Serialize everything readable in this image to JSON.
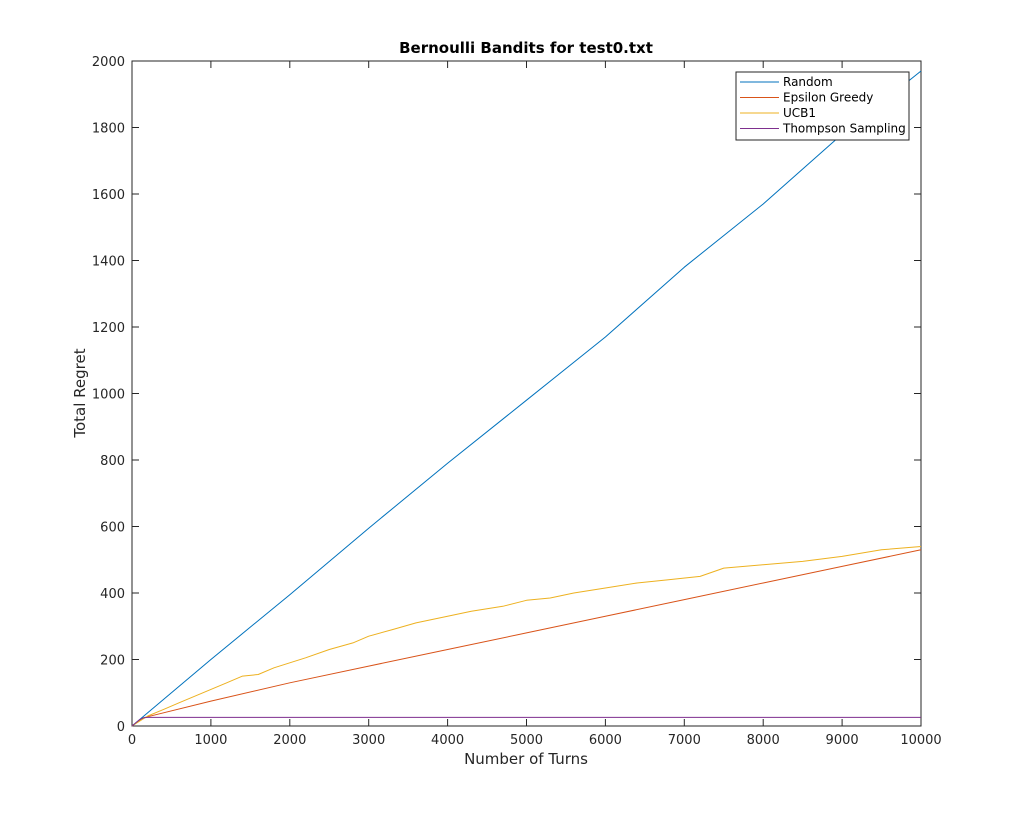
{
  "chart_data": {
    "type": "line",
    "title": "Bernoulli Bandits for test0.txt",
    "xlabel": "Number of Turns",
    "ylabel": "Total Regret",
    "xlim": [
      0,
      10000
    ],
    "ylim": [
      0,
      2000
    ],
    "xticks": [
      0,
      1000,
      2000,
      3000,
      4000,
      5000,
      6000,
      7000,
      8000,
      9000,
      10000
    ],
    "yticks": [
      0,
      200,
      400,
      600,
      800,
      1000,
      1200,
      1400,
      1600,
      1800,
      2000
    ],
    "grid": false,
    "legend_position": "top-right",
    "series": [
      {
        "name": "Random",
        "color": "#0072BD",
        "x": [
          0,
          1000,
          2000,
          3000,
          4000,
          5000,
          6000,
          7000,
          8000,
          9000,
          10000
        ],
        "y": [
          0,
          200,
          395,
          595,
          790,
          980,
          1170,
          1380,
          1570,
          1780,
          1970
        ]
      },
      {
        "name": "Epsilon Greedy",
        "color": "#D95319",
        "x": [
          0,
          100,
          150,
          1000,
          2000,
          3000,
          4000,
          5000,
          6000,
          7000,
          8000,
          9000,
          10000
        ],
        "y": [
          0,
          18,
          25,
          75,
          130,
          180,
          230,
          280,
          330,
          380,
          430,
          480,
          530
        ]
      },
      {
        "name": "UCB1",
        "color": "#EDB120",
        "x": [
          0,
          200,
          400,
          600,
          800,
          1000,
          1200,
          1400,
          1600,
          1800,
          2000,
          2200,
          2500,
          2800,
          3000,
          3300,
          3600,
          4000,
          4300,
          4700,
          5000,
          5300,
          5600,
          6000,
          6400,
          6800,
          7200,
          7500,
          8000,
          8500,
          9000,
          9500,
          10000
        ],
        "y": [
          0,
          30,
          50,
          70,
          90,
          110,
          130,
          150,
          155,
          175,
          190,
          205,
          230,
          250,
          270,
          290,
          310,
          330,
          345,
          360,
          378,
          385,
          400,
          415,
          430,
          440,
          450,
          475,
          485,
          495,
          510,
          530,
          540
        ]
      },
      {
        "name": "Thompson Sampling",
        "color": "#7E2F8E",
        "x": [
          0,
          100,
          150,
          200,
          10000
        ],
        "y": [
          0,
          20,
          25,
          26,
          26
        ]
      }
    ]
  }
}
